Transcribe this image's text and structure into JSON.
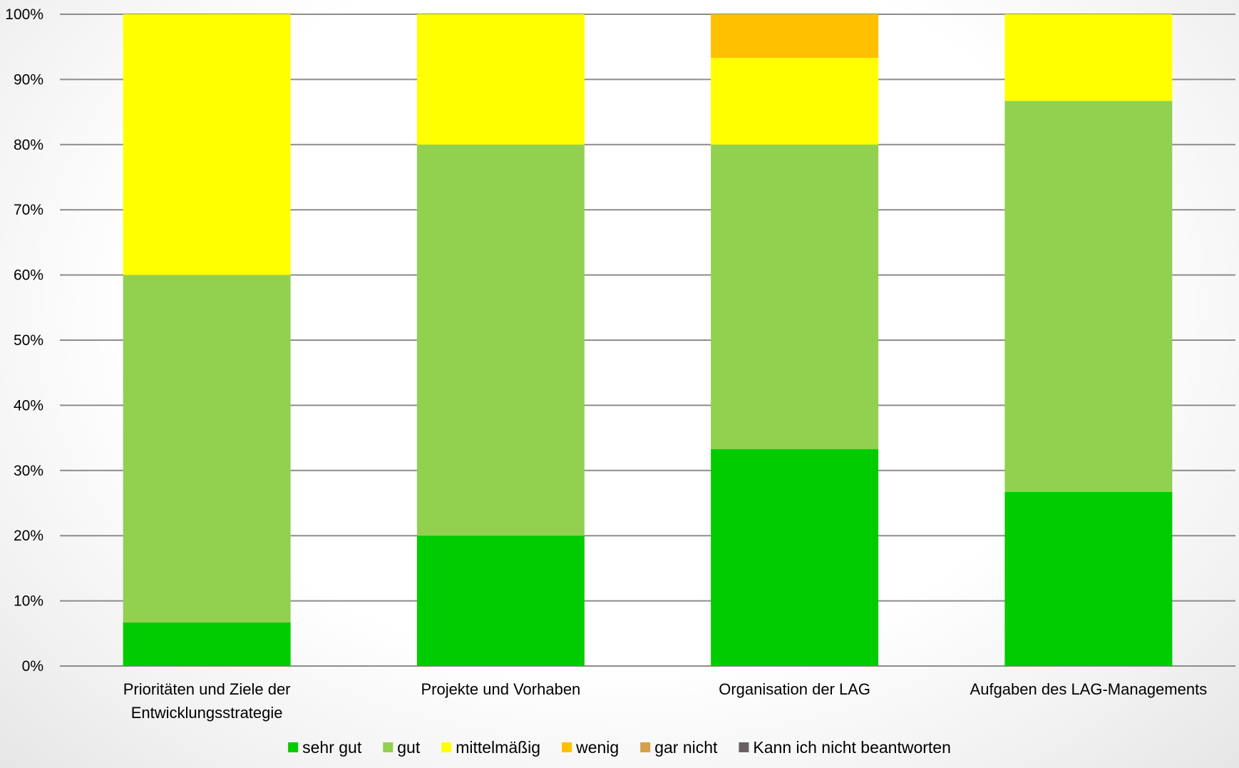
{
  "chart_data": {
    "type": "bar",
    "stacked": true,
    "percent": true,
    "title": "",
    "xlabel": "",
    "ylabel": "",
    "ylim": [
      0,
      100
    ],
    "y_ticks": [
      "0%",
      "10%",
      "20%",
      "30%",
      "40%",
      "50%",
      "60%",
      "70%",
      "80%",
      "90%",
      "100%"
    ],
    "grid": true,
    "legend_position": "bottom",
    "categories": [
      [
        "Prioritäten und Ziele der",
        "Entwicklungsstrategie"
      ],
      [
        "Projekte und Vorhaben"
      ],
      [
        "Organisation der LAG"
      ],
      [
        "Aufgaben des LAG-Managements"
      ]
    ],
    "series": [
      {
        "name": "sehr gut",
        "color": "#00cc00",
        "values": [
          6.7,
          20.0,
          33.3,
          26.7
        ]
      },
      {
        "name": "gut",
        "color": "#92d050",
        "values": [
          53.3,
          60.0,
          46.7,
          60.0
        ]
      },
      {
        "name": "mittelmäßig",
        "color": "#ffff00",
        "values": [
          40.0,
          20.0,
          13.3,
          13.3
        ]
      },
      {
        "name": "wenig",
        "color": "#ffc000",
        "values": [
          0,
          0,
          6.7,
          0
        ]
      },
      {
        "name": "gar nicht",
        "color": "#d4a04a",
        "values": [
          0,
          0,
          0,
          0
        ]
      },
      {
        "name": "Kann ich nicht beantworten",
        "color": "#6b6163",
        "values": [
          0,
          0,
          0,
          0
        ]
      }
    ]
  }
}
